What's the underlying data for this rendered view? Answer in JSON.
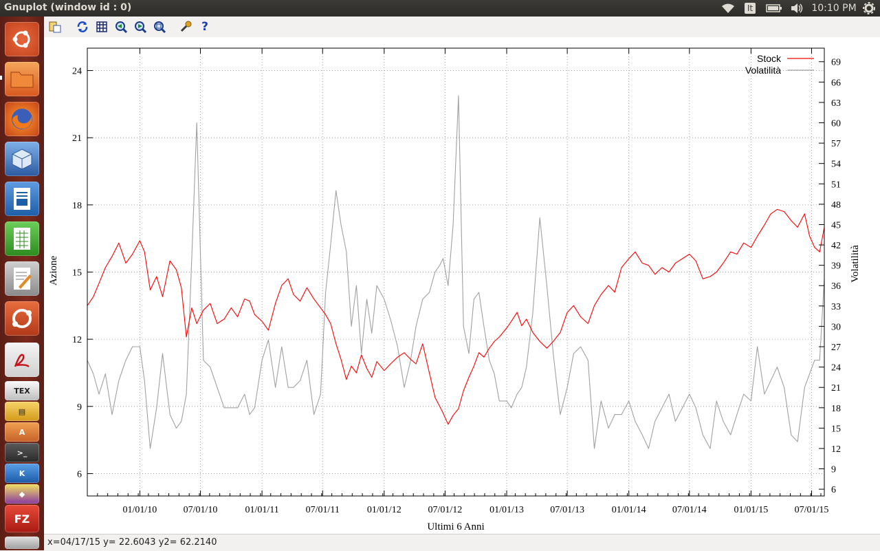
{
  "window": {
    "title": "Gnuplot (window id : 0)"
  },
  "panel": {
    "keyboard_layout": "It",
    "clock": "10:10 PM"
  },
  "launcher": [
    "ubuntu-logo-icon",
    "files-icon",
    "firefox-icon",
    "virtualbox-icon",
    "writer-icon",
    "calc-icon",
    "text-editor-icon",
    "ubuntu-one-icon",
    "acrobat-icon",
    "texmaker-icon",
    "archive-icon",
    "software-center-icon",
    "terminal-icon",
    "kde-icon",
    "color-app-icon",
    "filezilla-icon",
    "drive-icon"
  ],
  "toolbar": [
    "copy-clipboard-icon",
    "replot-icon",
    "grid-icon",
    "zoom-previous-icon",
    "zoom-next-icon",
    "unzoom-icon",
    "config-icon",
    "help-icon"
  ],
  "status": {
    "text": "x=04/17/15 y= 22.6043 y2= 62.2140"
  },
  "chart_data": {
    "type": "line",
    "xlabel": "Ultimi 6 Anni",
    "ylabel": "Azione",
    "y2label": "Volatilità",
    "x_ticks": [
      "01/01/10",
      "07/01/10",
      "01/01/11",
      "07/01/11",
      "01/01/12",
      "07/01/12",
      "01/01/13",
      "07/01/13",
      "01/01/14",
      "07/01/14",
      "01/01/15",
      "07/01/15"
    ],
    "xlim": [
      "2009-07-28",
      "2015-08-08"
    ],
    "y_ticks": [
      6,
      9,
      12,
      15,
      18,
      21,
      24
    ],
    "ylim": [
      5,
      25
    ],
    "y2_ticks": [
      6,
      9,
      12,
      15,
      18,
      21,
      24,
      27,
      30,
      33,
      36,
      39,
      42,
      45,
      48,
      51,
      54,
      57,
      60,
      63,
      66,
      69
    ],
    "y2lim": [
      5,
      71
    ],
    "grid": true,
    "legend_position": "top-right",
    "series": [
      {
        "name": "Stock",
        "axis": "y",
        "color": "#ff0000",
        "x": [
          "2009-07-28",
          "2009-08-15",
          "2009-09-01",
          "2009-09-20",
          "2009-10-10",
          "2009-10-30",
          "2009-11-20",
          "2009-12-10",
          "2010-01-01",
          "2010-01-15",
          "2010-02-01",
          "2010-02-20",
          "2010-03-10",
          "2010-04-01",
          "2010-04-20",
          "2010-05-05",
          "2010-05-20",
          "2010-06-05",
          "2010-06-20",
          "2010-07-10",
          "2010-07-30",
          "2010-08-20",
          "2010-09-10",
          "2010-10-01",
          "2010-10-20",
          "2010-11-10",
          "2010-11-25",
          "2010-12-10",
          "2011-01-01",
          "2011-01-20",
          "2011-02-10",
          "2011-03-01",
          "2011-03-20",
          "2011-04-05",
          "2011-04-25",
          "2011-05-15",
          "2011-06-05",
          "2011-06-25",
          "2011-07-10",
          "2011-07-25",
          "2011-08-10",
          "2011-08-25",
          "2011-09-10",
          "2011-09-25",
          "2011-10-10",
          "2011-10-25",
          "2011-11-10",
          "2011-11-25",
          "2011-12-10",
          "2012-01-01",
          "2012-01-20",
          "2012-02-10",
          "2012-03-01",
          "2012-03-20",
          "2012-04-05",
          "2012-04-25",
          "2012-05-15",
          "2012-06-01",
          "2012-06-15",
          "2012-06-25",
          "2012-07-10",
          "2012-07-25",
          "2012-08-10",
          "2012-08-25",
          "2012-09-10",
          "2012-09-25",
          "2012-10-10",
          "2012-10-25",
          "2012-11-10",
          "2012-11-25",
          "2012-12-10",
          "2013-01-01",
          "2013-01-15",
          "2013-02-01",
          "2013-02-15",
          "2013-03-01",
          "2013-03-20",
          "2013-04-10",
          "2013-05-01",
          "2013-05-20",
          "2013-06-10",
          "2013-07-01",
          "2013-07-20",
          "2013-08-10",
          "2013-09-01",
          "2013-09-20",
          "2013-10-10",
          "2013-11-01",
          "2013-11-20",
          "2013-12-10",
          "2014-01-01",
          "2014-01-20",
          "2014-02-10",
          "2014-03-01",
          "2014-03-20",
          "2014-04-10",
          "2014-05-01",
          "2014-05-20",
          "2014-06-10",
          "2014-07-01",
          "2014-07-20",
          "2014-08-10",
          "2014-09-01",
          "2014-09-20",
          "2014-10-10",
          "2014-11-01",
          "2014-11-20",
          "2014-12-10",
          "2015-01-01",
          "2015-01-20",
          "2015-02-10",
          "2015-03-01",
          "2015-03-20",
          "2015-04-10",
          "2015-05-01",
          "2015-05-20",
          "2015-06-10",
          "2015-06-25",
          "2015-07-10",
          "2015-07-25",
          "2015-08-08"
        ],
        "y": [
          13.5,
          13.9,
          14.5,
          15.2,
          15.7,
          16.3,
          15.4,
          15.8,
          16.4,
          15.9,
          14.2,
          14.8,
          13.9,
          15.5,
          15.1,
          14.3,
          12.1,
          13.4,
          12.7,
          13.3,
          13.6,
          12.7,
          12.9,
          13.4,
          13.0,
          13.8,
          13.7,
          13.1,
          12.8,
          12.4,
          13.6,
          14.4,
          14.7,
          14.0,
          13.7,
          14.3,
          13.8,
          13.4,
          13.1,
          12.7,
          11.8,
          11.1,
          10.2,
          10.8,
          10.5,
          11.3,
          10.7,
          10.3,
          11.0,
          10.6,
          10.9,
          11.2,
          11.4,
          11.1,
          10.9,
          11.8,
          10.5,
          9.4,
          9.0,
          8.7,
          8.2,
          8.6,
          8.9,
          9.7,
          10.3,
          10.8,
          11.4,
          11.2,
          11.6,
          11.9,
          12.1,
          12.5,
          12.8,
          13.2,
          12.6,
          12.9,
          12.3,
          11.9,
          11.6,
          11.9,
          12.3,
          13.2,
          13.5,
          13.0,
          12.7,
          13.5,
          14.0,
          14.4,
          14.1,
          15.2,
          15.6,
          15.9,
          15.4,
          15.3,
          14.9,
          15.2,
          15.0,
          15.4,
          15.6,
          15.8,
          15.5,
          14.7,
          14.8,
          15.0,
          15.4,
          15.9,
          15.8,
          16.3,
          16.1,
          16.6,
          17.1,
          17.6,
          17.8,
          17.7,
          17.3,
          17.0,
          17.6,
          16.6,
          16.1,
          15.9,
          17.0
        ]
      },
      {
        "name": "Volatilità",
        "axis": "y2",
        "color": "#a0a0a0",
        "x": [
          "2009-07-28",
          "2009-08-15",
          "2009-09-01",
          "2009-09-20",
          "2009-10-10",
          "2009-10-30",
          "2009-11-20",
          "2009-12-10",
          "2010-01-01",
          "2010-01-15",
          "2010-02-01",
          "2010-02-20",
          "2010-03-10",
          "2010-04-01",
          "2010-04-20",
          "2010-05-05",
          "2010-05-20",
          "2010-06-05",
          "2010-06-20",
          "2010-07-10",
          "2010-07-30",
          "2010-08-20",
          "2010-09-10",
          "2010-10-01",
          "2010-10-20",
          "2010-11-10",
          "2010-11-25",
          "2010-12-10",
          "2011-01-01",
          "2011-01-20",
          "2011-02-10",
          "2011-03-01",
          "2011-03-20",
          "2011-04-05",
          "2011-04-25",
          "2011-05-15",
          "2011-06-05",
          "2011-06-25",
          "2011-07-10",
          "2011-07-25",
          "2011-08-10",
          "2011-08-25",
          "2011-09-10",
          "2011-09-25",
          "2011-10-10",
          "2011-10-25",
          "2011-11-10",
          "2011-11-25",
          "2011-12-10",
          "2012-01-01",
          "2012-01-20",
          "2012-02-10",
          "2012-03-01",
          "2012-03-20",
          "2012-04-05",
          "2012-04-25",
          "2012-05-15",
          "2012-06-01",
          "2012-06-15",
          "2012-06-25",
          "2012-07-10",
          "2012-07-25",
          "2012-08-10",
          "2012-08-25",
          "2012-09-10",
          "2012-09-25",
          "2012-10-10",
          "2012-10-25",
          "2012-11-10",
          "2012-11-25",
          "2012-12-10",
          "2013-01-01",
          "2013-01-15",
          "2013-02-01",
          "2013-02-15",
          "2013-03-01",
          "2013-03-20",
          "2013-04-10",
          "2013-05-01",
          "2013-05-20",
          "2013-06-10",
          "2013-07-01",
          "2013-07-20",
          "2013-08-10",
          "2013-09-01",
          "2013-09-20",
          "2013-10-10",
          "2013-11-01",
          "2013-11-20",
          "2013-12-10",
          "2014-01-01",
          "2014-01-20",
          "2014-02-10",
          "2014-03-01",
          "2014-03-20",
          "2014-04-10",
          "2014-05-01",
          "2014-05-20",
          "2014-06-10",
          "2014-07-01",
          "2014-07-20",
          "2014-08-10",
          "2014-09-01",
          "2014-09-20",
          "2014-10-10",
          "2014-11-01",
          "2014-11-20",
          "2014-12-10",
          "2015-01-01",
          "2015-01-20",
          "2015-02-10",
          "2015-03-01",
          "2015-03-20",
          "2015-04-10",
          "2015-05-01",
          "2015-05-20",
          "2015-06-10",
          "2015-06-25",
          "2015-07-10",
          "2015-07-25",
          "2015-08-08"
        ],
        "y": [
          25,
          23,
          20,
          23,
          17,
          22,
          25,
          27,
          27,
          22,
          12,
          18,
          26,
          17,
          15,
          16,
          20,
          40,
          60,
          25,
          24,
          21,
          18,
          18,
          18,
          20,
          17,
          18,
          25,
          28,
          21,
          27,
          21,
          21,
          22,
          25,
          17,
          20,
          35,
          42,
          50,
          45,
          41,
          30,
          36,
          26,
          34,
          29,
          36,
          34,
          31,
          27,
          21,
          25,
          30,
          34,
          35,
          38,
          39,
          40,
          36,
          45,
          64,
          30,
          26,
          34,
          35,
          30,
          25,
          23,
          19,
          19,
          18,
          20,
          21,
          24,
          32,
          46,
          36,
          26,
          17,
          21,
          26,
          27,
          25,
          12,
          19,
          15,
          17,
          17,
          19,
          16,
          14,
          12,
          16,
          18,
          20,
          16,
          18,
          20,
          18,
          14,
          12,
          19,
          16,
          14,
          17,
          20,
          19,
          27,
          20,
          22,
          24,
          21,
          14,
          13,
          21,
          23,
          25,
          25,
          37
        ]
      }
    ]
  }
}
